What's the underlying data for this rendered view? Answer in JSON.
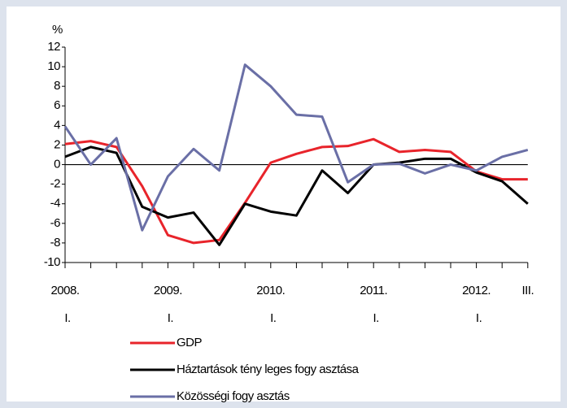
{
  "chart_data": {
    "type": "line",
    "y_unit": "%",
    "categories": [
      [
        "2008.",
        "I."
      ],
      null,
      null,
      null,
      [
        "2009.",
        "I."
      ],
      null,
      null,
      null,
      [
        "2010.",
        "I."
      ],
      null,
      null,
      null,
      [
        "2011.",
        "I."
      ],
      null,
      null,
      null,
      [
        "2012.",
        "I."
      ],
      null,
      [
        "III."
      ]
    ],
    "ylim": [
      -10,
      12
    ],
    "yticks": [
      -10,
      -8,
      -6,
      -4,
      -2,
      0,
      2,
      4,
      6,
      8,
      10,
      12
    ],
    "series": [
      {
        "name": "GDP",
        "color": "#e8242b",
        "values": [
          2.1,
          2.4,
          1.8,
          -2.2,
          -7.2,
          -8.0,
          -7.7,
          -3.9,
          0.2,
          1.1,
          1.8,
          1.9,
          2.6,
          1.3,
          1.5,
          1.3,
          -0.7,
          -1.5,
          -1.5
        ]
      },
      {
        "name": "Háztartások tény leges fogy asztása",
        "color": "#000000",
        "values": [
          0.8,
          1.8,
          1.2,
          -4.3,
          -5.4,
          -4.9,
          -8.2,
          -4.0,
          -4.8,
          -5.2,
          -0.6,
          -2.9,
          0.0,
          0.2,
          0.6,
          0.6,
          -0.8,
          -1.7,
          -4.0
        ]
      },
      {
        "name": "Közösségi fogy asztás",
        "color": "#6a6fa6",
        "values": [
          3.9,
          0.0,
          2.7,
          -6.7,
          -1.2,
          1.6,
          -0.6,
          10.2,
          8.0,
          5.1,
          4.9,
          -1.8,
          0.0,
          0.1,
          -0.9,
          0.0,
          -0.6,
          0.8,
          1.5
        ]
      }
    ]
  }
}
